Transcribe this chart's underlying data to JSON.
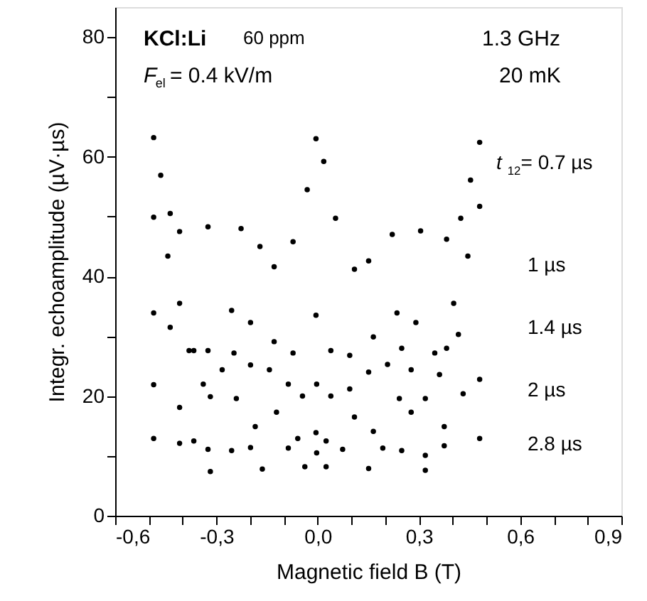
{
  "chart_data": {
    "type": "scatter",
    "xlabel": "Magnetic field B (T)",
    "ylabel": "Integr. echoamplitude (µV·µs)",
    "annotations": [
      "KCl:Li",
      "60 ppm",
      "1.3 GHz",
      "20 mK",
      "F$_{el}$= 0.4 kV/m"
    ],
    "marker": "circle",
    "grid": false,
    "xlim": [
      -0.6,
      0.9
    ],
    "ylim": [
      0,
      85
    ],
    "xticks": [
      {
        "value": -0.6,
        "label": "-0,6"
      },
      {
        "value": -0.5,
        "label": null
      },
      {
        "value": -0.4,
        "label": null
      },
      {
        "value": -0.3,
        "label": "-0,3"
      },
      {
        "value": -0.2,
        "label": null
      },
      {
        "value": -0.1,
        "label": null
      },
      {
        "value": 0.0,
        "label": "0,0"
      },
      {
        "value": 0.1,
        "label": null
      },
      {
        "value": 0.2,
        "label": null
      },
      {
        "value": 0.3,
        "label": "0,3"
      },
      {
        "value": 0.4,
        "label": null
      },
      {
        "value": 0.5,
        "label": null
      },
      {
        "value": 0.6,
        "label": "0,6"
      },
      {
        "value": 0.7,
        "label": null
      },
      {
        "value": 0.8,
        "label": null
      },
      {
        "value": 0.9,
        "label": "0,9"
      }
    ],
    "yticks": [
      0,
      {
        "value": 10,
        "label": null
      },
      20,
      {
        "value": 30,
        "label": null
      },
      40,
      {
        "value": 50,
        "label": null
      },
      60,
      {
        "value": 70,
        "label": null
      },
      80
    ],
    "series": [
      {
        "name": "t$_{12}$= 0.7 µs",
        "color": "#000000",
        "x": [
          -0.486,
          -0.465,
          -0.437,
          -0.409,
          -0.325,
          -0.227,
          -0.171,
          -0.129,
          -0.073,
          -0.031,
          -0.005,
          0.018,
          0.053,
          0.109,
          0.151,
          0.221,
          0.305,
          0.382,
          0.424,
          0.453,
          0.48
        ],
        "values": [
          63.2,
          56.9,
          50.5,
          47.5,
          48.3,
          48.0,
          45.0,
          41.6,
          45.8,
          54.5,
          63.0,
          59.2,
          49.7,
          41.2,
          42.6,
          47.0,
          47.6,
          46.2,
          49.7,
          56.1,
          62.4
        ]
      },
      {
        "name": "1 µs",
        "color": "#000000",
        "x": [
          -0.486,
          -0.444,
          -0.409,
          -0.381,
          -0.339,
          -0.318,
          -0.283,
          -0.248,
          -0.199,
          -0.143,
          -0.087,
          -0.045,
          -0.003,
          0.039,
          0.095,
          0.151,
          0.207,
          0.249,
          0.277,
          0.319,
          0.361,
          0.403,
          0.445,
          0.48
        ],
        "values": [
          49.9,
          43.4,
          35.5,
          27.6,
          22.0,
          19.9,
          24.4,
          27.2,
          25.2,
          24.4,
          22.0,
          20.0,
          22.0,
          20.0,
          21.2,
          24.0,
          25.3,
          28.0,
          24.4,
          19.6,
          23.6,
          35.5,
          43.4,
          51.7
        ]
      },
      {
        "name": "1.4 µs",
        "color": "#000000",
        "x": [
          -0.486,
          -0.437,
          -0.367,
          -0.325,
          -0.255,
          -0.199,
          -0.129,
          -0.073,
          -0.005,
          0.039,
          0.095,
          0.165,
          0.235,
          0.291,
          0.347,
          0.382,
          0.417
        ],
        "values": [
          33.9,
          31.5,
          27.6,
          27.6,
          34.3,
          32.3,
          29.1,
          27.2,
          33.5,
          27.6,
          26.8,
          29.9,
          33.9,
          32.3,
          27.2,
          28.0,
          30.3
        ]
      },
      {
        "name": "2 µs",
        "color": "#000000",
        "x": [
          -0.486,
          -0.409,
          -0.367,
          -0.325,
          -0.241,
          -0.185,
          -0.122,
          -0.059,
          -0.005,
          0.025,
          0.109,
          0.165,
          0.242,
          0.277,
          0.319,
          0.375,
          0.431,
          0.48
        ],
        "values": [
          21.9,
          18.1,
          12.5,
          11.1,
          19.6,
          14.9,
          17.3,
          12.9,
          13.9,
          12.5,
          16.5,
          14.1,
          19.6,
          17.3,
          10.1,
          14.9,
          20.4,
          22.8
        ]
      },
      {
        "name": "2.8 µs",
        "color": "#000000",
        "x": [
          -0.486,
          -0.409,
          -0.318,
          -0.255,
          -0.199,
          -0.164,
          -0.087,
          -0.038,
          -0.003,
          0.025,
          0.074,
          0.151,
          0.193,
          0.249,
          0.319,
          0.375,
          0.48
        ],
        "values": [
          12.9,
          12.1,
          7.4,
          10.9,
          11.4,
          7.8,
          11.3,
          8.2,
          10.5,
          8.2,
          11.1,
          7.9,
          11.3,
          10.9,
          7.6,
          11.7,
          12.9
        ]
      }
    ]
  }
}
